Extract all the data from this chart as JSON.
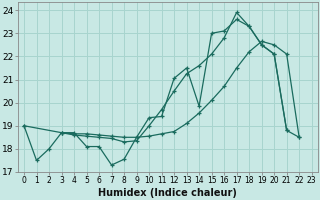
{
  "xlabel": "Humidex (Indice chaleur)",
  "bg_color": "#c8e8e4",
  "grid_color": "#a8d4ce",
  "line_color": "#1a6b5e",
  "xlim": [
    -0.5,
    23.5
  ],
  "ylim": [
    17.0,
    24.35
  ],
  "yticks": [
    17,
    18,
    19,
    20,
    21,
    22,
    23,
    24
  ],
  "xticks": [
    0,
    1,
    2,
    3,
    4,
    5,
    6,
    7,
    8,
    9,
    10,
    11,
    12,
    13,
    14,
    15,
    16,
    17,
    18,
    19,
    20,
    21,
    22,
    23
  ],
  "series": [
    {
      "x": [
        0,
        1,
        2,
        3,
        4,
        5,
        6,
        7,
        8,
        9,
        10,
        11,
        12,
        13,
        14,
        15,
        16,
        17,
        18,
        19,
        20,
        21,
        22
      ],
      "y": [
        19.0,
        17.5,
        18.0,
        18.7,
        18.7,
        18.1,
        18.1,
        17.3,
        17.55,
        18.5,
        19.35,
        19.4,
        21.05,
        21.5,
        19.85,
        23.0,
        23.1,
        23.6,
        23.3,
        22.5,
        22.1,
        18.8,
        18.5
      ]
    },
    {
      "x": [
        3,
        4,
        5,
        6,
        7,
        8,
        9,
        10,
        11,
        12,
        13,
        14,
        15,
        16,
        17,
        18,
        19,
        20,
        21,
        22
      ],
      "y": [
        18.7,
        18.65,
        18.65,
        18.6,
        18.55,
        18.5,
        18.5,
        18.55,
        18.65,
        18.75,
        19.1,
        19.55,
        20.1,
        20.7,
        21.5,
        22.2,
        22.65,
        22.5,
        22.1,
        18.5
      ]
    },
    {
      "x": [
        0,
        3,
        4,
        5,
        6,
        7,
        8,
        9,
        10,
        11,
        12,
        13,
        14,
        15,
        16,
        17,
        18,
        19,
        20,
        21
      ],
      "y": [
        19.0,
        18.7,
        18.6,
        18.55,
        18.5,
        18.45,
        18.3,
        18.35,
        19.0,
        19.7,
        20.5,
        21.25,
        21.6,
        22.1,
        22.8,
        23.9,
        23.3,
        22.5,
        22.1,
        18.8
      ]
    }
  ]
}
